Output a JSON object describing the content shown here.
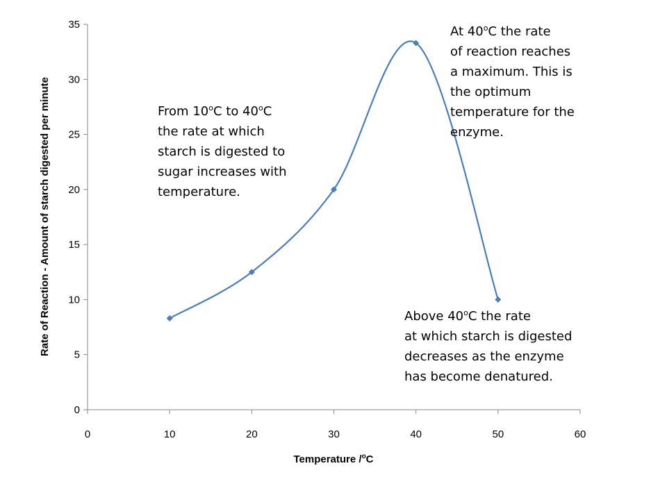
{
  "chart_data": {
    "type": "line",
    "smooth": true,
    "x": [
      10,
      20,
      30,
      40,
      50
    ],
    "series": [
      {
        "values": [
          8.3,
          12.5,
          20,
          33.3,
          10
        ],
        "color": "#4a7ebb",
        "marker": "diamond"
      }
    ],
    "title": "",
    "xlabel": {
      "main": "Temperature /",
      "sup": "o",
      "tail": "C"
    },
    "ylabel": "Rate of Reaction  - Amount of starch digested per minute",
    "xlim": [
      0,
      60
    ],
    "ylim": [
      0,
      35
    ],
    "xticks": [
      "0",
      "10",
      "20",
      "30",
      "40",
      "50",
      "60"
    ],
    "yticks": [
      "0",
      "5",
      "10",
      "15",
      "20",
      "25",
      "30",
      "35"
    ],
    "grid": false,
    "legend": "none"
  },
  "annotations": {
    "rise": {
      "line1": {
        "a": "From 10",
        "s1": "o",
        "b": "C to 40",
        "s2": "o",
        "c": "C"
      },
      "line2": "the rate at which",
      "line3": "starch is digested to",
      "line4": "sugar increases with",
      "line5": "temperature."
    },
    "peak": {
      "line1": {
        "a": "At 40",
        "s1": "o",
        "b": "C the rate"
      },
      "line2": "of reaction reaches",
      "line3": "a maximum.  This is",
      "line4": "the optimum",
      "line5": "temperature for the",
      "line6": "enzyme."
    },
    "fall": {
      "line1": {
        "a": "Above 40",
        "s1": "o",
        "b": "C the rate"
      },
      "line2": "at which starch is digested",
      "line3": "decreases as the enzyme",
      "line4": "has become denatured."
    }
  }
}
